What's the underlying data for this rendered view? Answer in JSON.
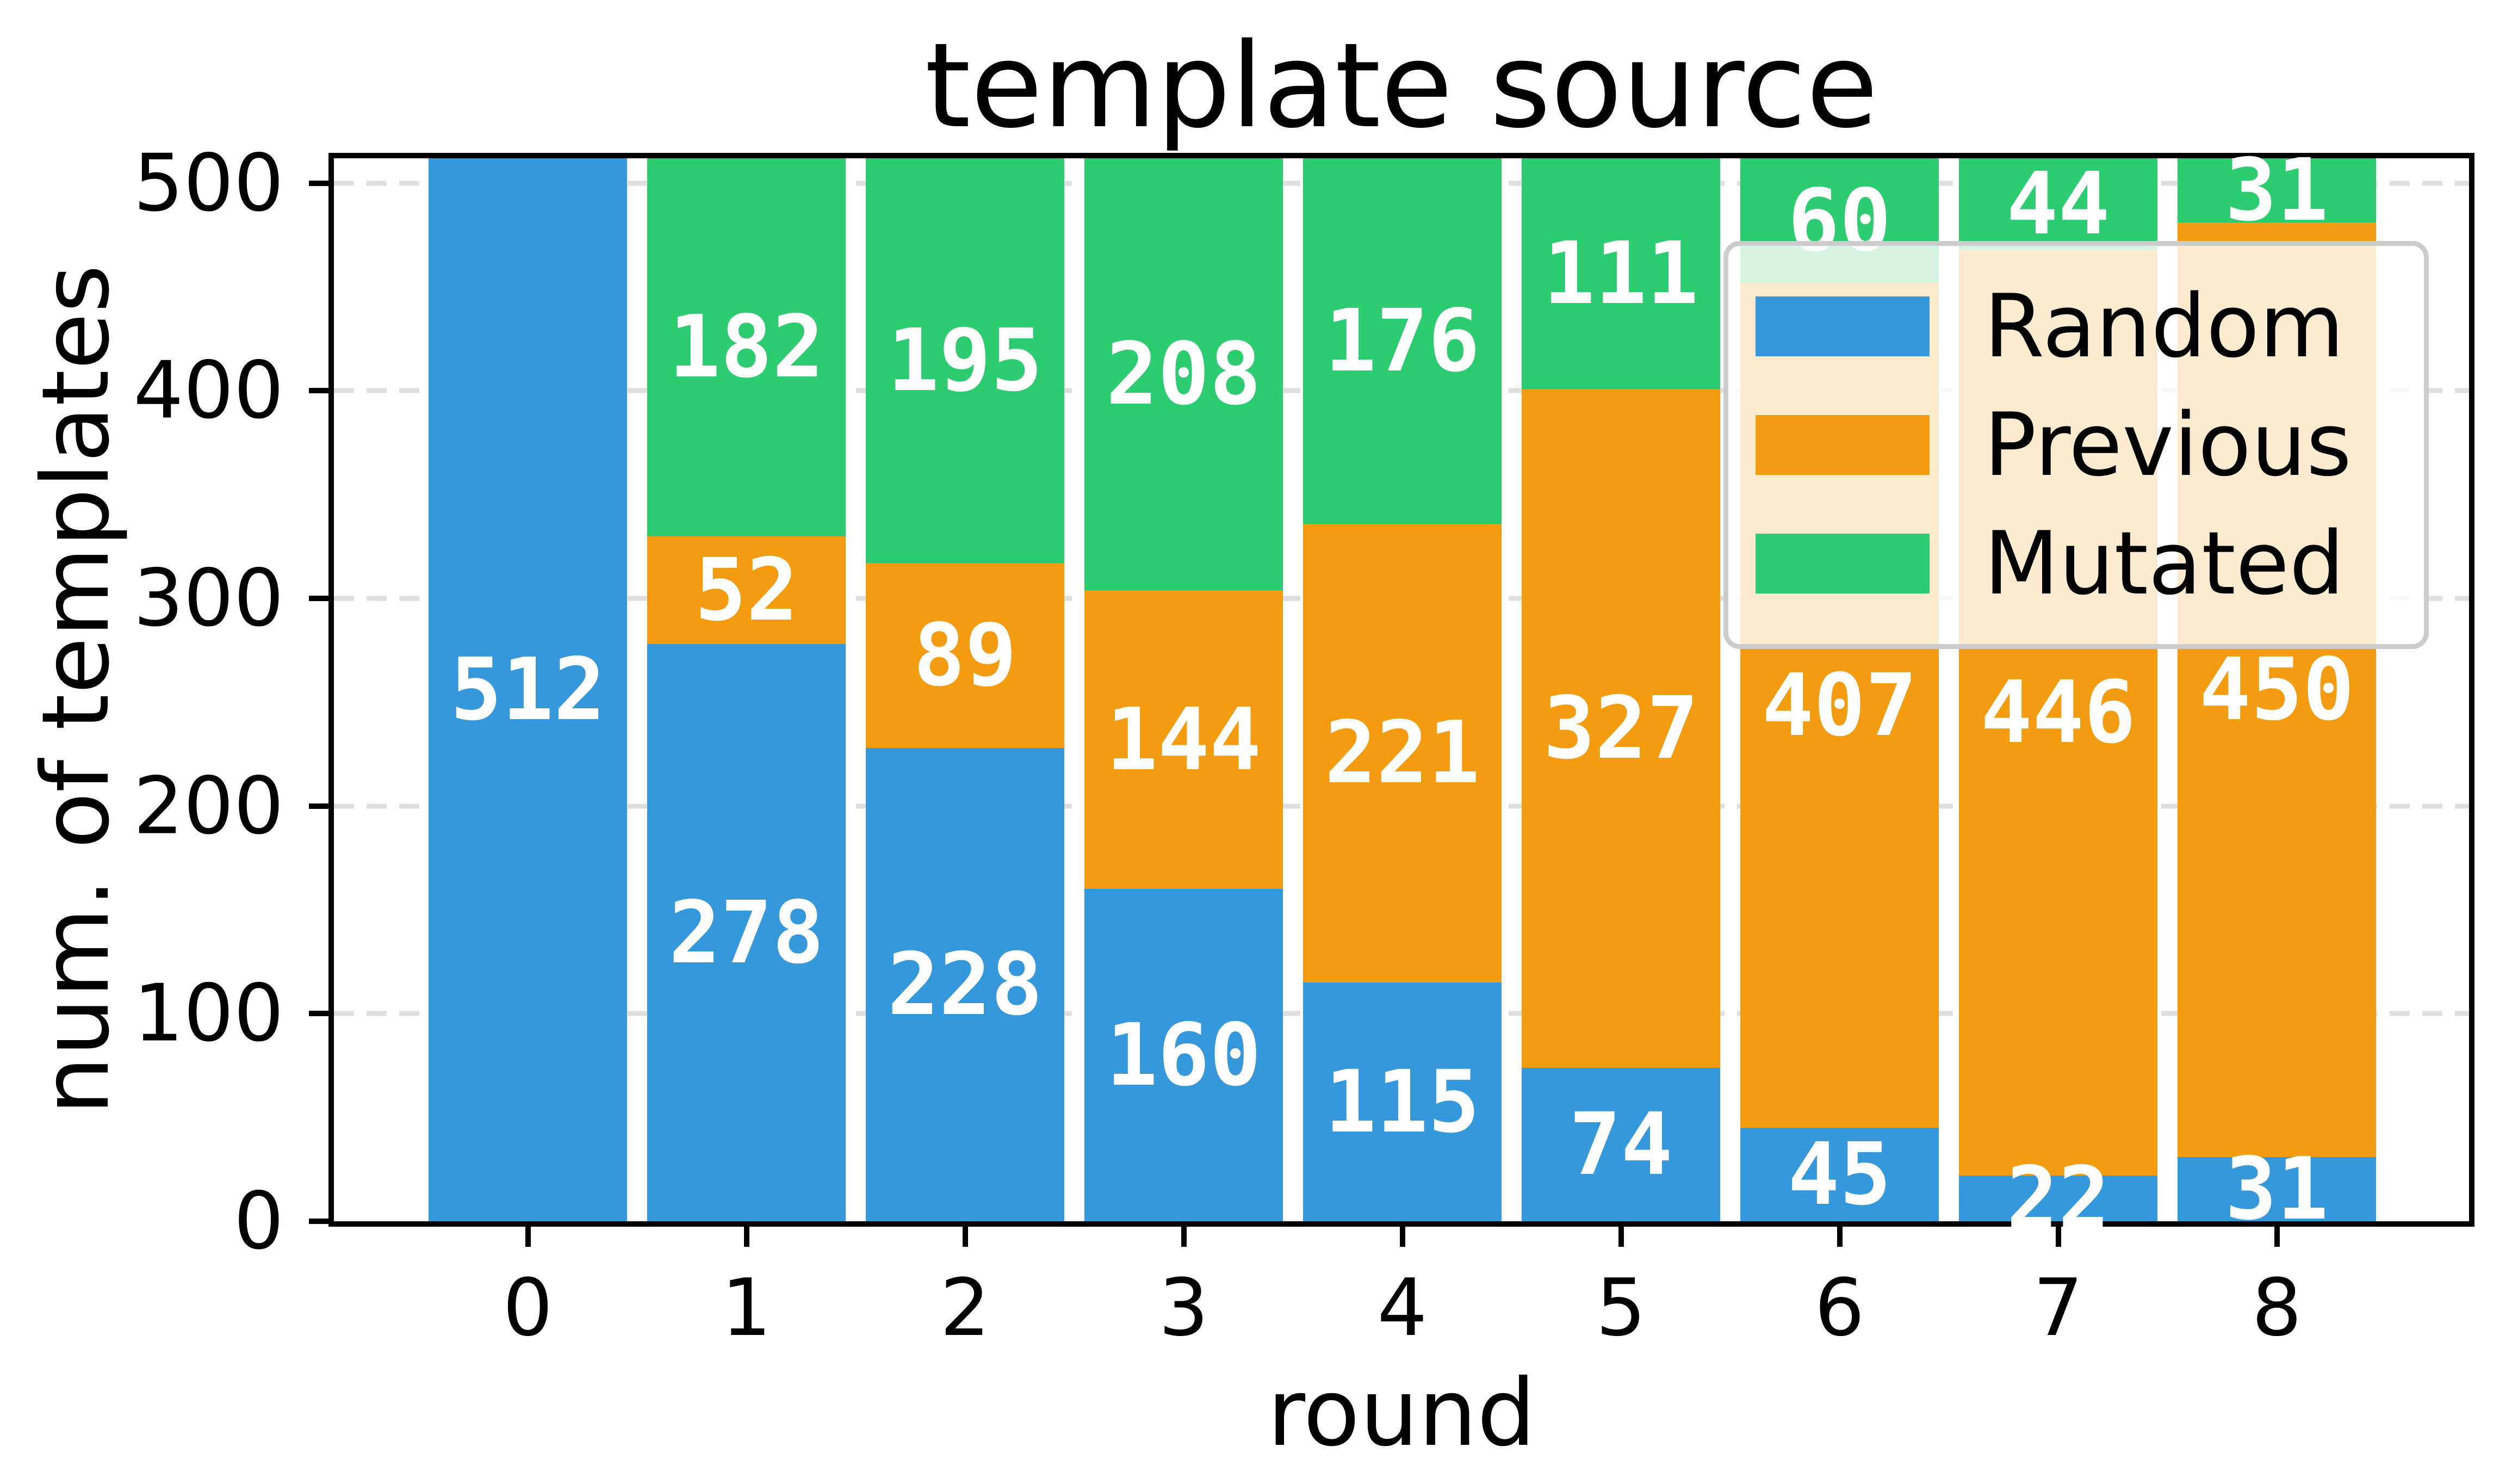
{
  "chart_data": {
    "type": "bar",
    "stacked": true,
    "title": "template source",
    "xlabel": "round",
    "ylabel": "num. of templates",
    "categories": [
      "0",
      "1",
      "2",
      "3",
      "4",
      "5",
      "6",
      "7",
      "8"
    ],
    "series": [
      {
        "name": "Random",
        "color": "#3498db",
        "values": [
          512,
          278,
          228,
          160,
          115,
          74,
          45,
          22,
          31
        ]
      },
      {
        "name": "Previous",
        "color": "#f39c12",
        "values": [
          0,
          52,
          89,
          144,
          221,
          327,
          407,
          446,
          450
        ]
      },
      {
        "name": "Mutated",
        "color": "#2ecc71",
        "values": [
          0,
          182,
          195,
          208,
          176,
          111,
          60,
          44,
          31
        ]
      }
    ],
    "bar_totals": [
      512,
      512,
      512,
      512,
      512,
      512,
      512,
      512,
      512
    ],
    "ylim": [
      0,
      512
    ],
    "yticks": [
      0,
      100,
      200,
      300,
      400,
      500
    ],
    "grid": "horizontal dashed",
    "grid_color": "#dedede",
    "value_labels_color": "#ffffff",
    "legend_position": "upper right",
    "legend_frame_color": "#cccccc",
    "legend_background": "rgba(255,255,255,0.8)"
  }
}
